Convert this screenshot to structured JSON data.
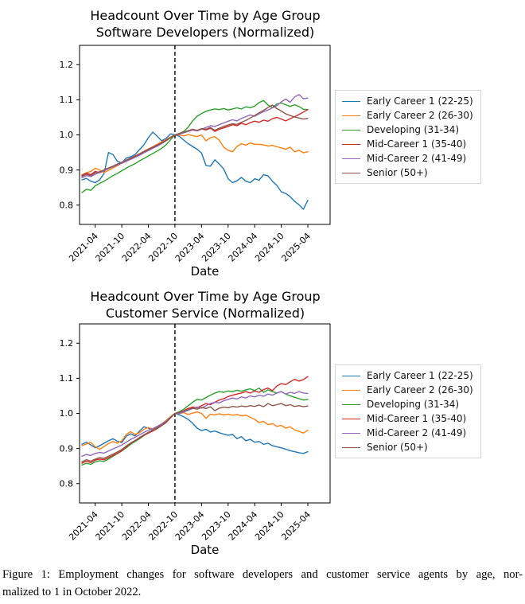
{
  "figure": {
    "caption_lines": [
      "Figure 1: Employment changes for software developers and customer service agents by age, nor-",
      "malized to 1 in October 2022."
    ]
  },
  "chart_data": [
    {
      "type": "line",
      "title_lines": [
        "Headcount Over Time by Age Group",
        "Software Developers (Normalized)"
      ],
      "xlabel": "Date",
      "ylabel": "",
      "grid": false,
      "legend_position": "right-outside",
      "y_ticks": [
        0.8,
        0.9,
        1.0,
        1.1,
        1.2
      ],
      "ylim": [
        0.745,
        1.255
      ],
      "vline": {
        "x": "2022-10",
        "style": "dashed",
        "color": "#000000"
      },
      "x_tick_labels": [
        "2021-04",
        "2021-10",
        "2022-04",
        "2022-10",
        "2023-04",
        "2023-10",
        "2024-04",
        "2024-10",
        "2025-04"
      ],
      "x": [
        "2021-01",
        "2021-02",
        "2021-03",
        "2021-04",
        "2021-05",
        "2021-06",
        "2021-07",
        "2021-08",
        "2021-09",
        "2021-10",
        "2021-11",
        "2021-12",
        "2022-01",
        "2022-02",
        "2022-03",
        "2022-04",
        "2022-05",
        "2022-06",
        "2022-07",
        "2022-08",
        "2022-09",
        "2022-10",
        "2022-11",
        "2022-12",
        "2023-01",
        "2023-02",
        "2023-03",
        "2023-04",
        "2023-05",
        "2023-06",
        "2023-07",
        "2023-08",
        "2023-09",
        "2023-10",
        "2023-11",
        "2023-12",
        "2024-01",
        "2024-02",
        "2024-03",
        "2024-04",
        "2024-05",
        "2024-06",
        "2024-07",
        "2024-08",
        "2024-09",
        "2024-10",
        "2024-11",
        "2024-12",
        "2025-01",
        "2025-02",
        "2025-03",
        "2025-04"
      ],
      "series": [
        {
          "name": "Early Career 1 (22-25)",
          "color": "#1f77b4",
          "values": [
            0.872,
            0.876,
            0.868,
            0.864,
            0.872,
            0.89,
            0.95,
            0.944,
            0.925,
            0.92,
            0.934,
            0.938,
            0.944,
            0.958,
            0.972,
            0.992,
            1.008,
            0.996,
            0.983,
            0.99,
            1.003,
            1.0,
            0.996,
            0.985,
            0.975,
            0.967,
            0.959,
            0.948,
            0.913,
            0.911,
            0.929,
            0.917,
            0.903,
            0.875,
            0.864,
            0.869,
            0.879,
            0.868,
            0.864,
            0.875,
            0.871,
            0.887,
            0.883,
            0.868,
            0.856,
            0.838,
            0.833,
            0.824,
            0.811,
            0.801,
            0.788,
            0.814
          ]
        },
        {
          "name": "Early Career 2 (26-30)",
          "color": "#ff7f0e",
          "values": [
            0.886,
            0.892,
            0.896,
            0.905,
            0.9,
            0.893,
            0.899,
            0.906,
            0.912,
            0.919,
            0.925,
            0.932,
            0.938,
            0.946,
            0.953,
            0.96,
            0.966,
            0.973,
            0.98,
            0.986,
            0.994,
            1.0,
            1.0,
            0.997,
            1.001,
            0.998,
            0.995,
            1.0,
            0.983,
            0.992,
            0.995,
            0.985,
            0.965,
            0.956,
            0.952,
            0.967,
            0.975,
            0.971,
            0.977,
            0.973,
            0.973,
            0.972,
            0.968,
            0.97,
            0.966,
            0.963,
            0.959,
            0.965,
            0.952,
            0.956,
            0.949,
            0.952
          ]
        },
        {
          "name": "Developing (31-34)",
          "color": "#2ca02c",
          "values": [
            0.836,
            0.845,
            0.842,
            0.855,
            0.862,
            0.868,
            0.876,
            0.884,
            0.89,
            0.898,
            0.905,
            0.912,
            0.918,
            0.926,
            0.933,
            0.94,
            0.947,
            0.954,
            0.962,
            0.972,
            0.986,
            1.0,
            1.004,
            1.01,
            1.022,
            1.04,
            1.053,
            1.061,
            1.067,
            1.071,
            1.074,
            1.072,
            1.075,
            1.071,
            1.074,
            1.077,
            1.074,
            1.08,
            1.077,
            1.082,
            1.092,
            1.098,
            1.085,
            1.078,
            1.088,
            1.091,
            1.086,
            1.081,
            1.086,
            1.081,
            1.073,
            1.072
          ]
        },
        {
          "name": "Mid-Career 1 (35-40)",
          "color": "#d62728",
          "values": [
            0.885,
            0.891,
            0.887,
            0.896,
            0.892,
            0.898,
            0.904,
            0.91,
            0.916,
            0.921,
            0.928,
            0.934,
            0.94,
            0.946,
            0.953,
            0.959,
            0.965,
            0.971,
            0.978,
            0.985,
            0.993,
            1.0,
            1.003,
            1.007,
            1.011,
            1.014,
            1.012,
            1.017,
            1.014,
            1.019,
            1.01,
            1.016,
            1.02,
            1.024,
            1.029,
            1.026,
            1.033,
            1.029,
            1.035,
            1.039,
            1.036,
            1.042,
            1.039,
            1.046,
            1.05,
            1.045,
            1.04,
            1.046,
            1.052,
            1.058,
            1.065,
            1.072
          ]
        },
        {
          "name": "Mid-Career 2 (41-49)",
          "color": "#9467bd",
          "values": [
            0.878,
            0.884,
            0.881,
            0.888,
            0.893,
            0.898,
            0.904,
            0.909,
            0.914,
            0.919,
            0.925,
            0.93,
            0.936,
            0.942,
            0.949,
            0.955,
            0.962,
            0.968,
            0.975,
            0.983,
            0.992,
            1.0,
            1.002,
            1.006,
            1.01,
            1.014,
            1.011,
            1.016,
            1.021,
            1.026,
            1.024,
            1.029,
            1.034,
            1.039,
            1.043,
            1.04,
            1.047,
            1.052,
            1.057,
            1.053,
            1.06,
            1.066,
            1.071,
            1.077,
            1.083,
            1.094,
            1.102,
            1.093,
            1.108,
            1.115,
            1.103,
            1.105
          ]
        },
        {
          "name": "Senior (50+)",
          "color": "#8c564b",
          "values": [
            0.882,
            0.888,
            0.884,
            0.892,
            0.895,
            0.9,
            0.906,
            0.911,
            0.917,
            0.922,
            0.928,
            0.933,
            0.939,
            0.945,
            0.952,
            0.958,
            0.964,
            0.97,
            0.977,
            0.984,
            0.992,
            1.0,
            1.004,
            1.008,
            1.012,
            1.016,
            1.013,
            1.018,
            1.016,
            1.021,
            1.013,
            1.019,
            1.024,
            1.028,
            1.032,
            1.03,
            1.036,
            1.041,
            1.048,
            1.055,
            1.063,
            1.07,
            1.078,
            1.085,
            1.075,
            1.068,
            1.06,
            1.055,
            1.051,
            1.048,
            1.045,
            1.047
          ]
        }
      ]
    },
    {
      "type": "line",
      "title_lines": [
        "Headcount Over Time by Age Group",
        "Customer Service (Normalized)"
      ],
      "xlabel": "Date",
      "ylabel": "",
      "grid": false,
      "legend_position": "right-outside",
      "y_ticks": [
        0.8,
        0.9,
        1.0,
        1.1,
        1.2
      ],
      "ylim": [
        0.745,
        1.255
      ],
      "vline": {
        "x": "2022-10",
        "style": "dashed",
        "color": "#000000"
      },
      "x_tick_labels": [
        "2021-04",
        "2021-10",
        "2022-04",
        "2022-10",
        "2023-04",
        "2023-10",
        "2024-04",
        "2024-10",
        "2025-04"
      ],
      "x": [
        "2021-01",
        "2021-02",
        "2021-03",
        "2021-04",
        "2021-05",
        "2021-06",
        "2021-07",
        "2021-08",
        "2021-09",
        "2021-10",
        "2021-11",
        "2021-12",
        "2022-01",
        "2022-02",
        "2022-03",
        "2022-04",
        "2022-05",
        "2022-06",
        "2022-07",
        "2022-08",
        "2022-09",
        "2022-10",
        "2022-11",
        "2022-12",
        "2023-01",
        "2023-02",
        "2023-03",
        "2023-04",
        "2023-05",
        "2023-06",
        "2023-07",
        "2023-08",
        "2023-09",
        "2023-10",
        "2023-11",
        "2023-12",
        "2024-01",
        "2024-02",
        "2024-03",
        "2024-04",
        "2024-05",
        "2024-06",
        "2024-07",
        "2024-08",
        "2024-09",
        "2024-10",
        "2024-11",
        "2024-12",
        "2025-01",
        "2025-02",
        "2025-03",
        "2025-04"
      ],
      "series": [
        {
          "name": "Early Career 1 (22-25)",
          "color": "#1f77b4",
          "values": [
            0.912,
            0.918,
            0.91,
            0.902,
            0.908,
            0.915,
            0.922,
            0.928,
            0.921,
            0.917,
            0.935,
            0.942,
            0.936,
            0.95,
            0.962,
            0.958,
            0.952,
            0.96,
            0.968,
            0.978,
            0.99,
            1.0,
            0.996,
            0.99,
            0.983,
            0.972,
            0.958,
            0.951,
            0.955,
            0.947,
            0.95,
            0.945,
            0.941,
            0.938,
            0.94,
            0.928,
            0.934,
            0.922,
            0.926,
            0.918,
            0.92,
            0.912,
            0.915,
            0.908,
            0.905,
            0.902,
            0.898,
            0.894,
            0.891,
            0.888,
            0.886,
            0.891
          ]
        },
        {
          "name": "Early Career 2 (26-30)",
          "color": "#ff7f0e",
          "values": [
            0.908,
            0.913,
            0.917,
            0.905,
            0.898,
            0.906,
            0.914,
            0.92,
            0.915,
            0.922,
            0.94,
            0.948,
            0.94,
            0.945,
            0.955,
            0.96,
            0.955,
            0.963,
            0.97,
            0.98,
            0.991,
            1.0,
            1.0,
            1.002,
            0.997,
            1.001,
            1.004,
            1.0,
            0.986,
            0.998,
            0.996,
            0.999,
            0.996,
            0.998,
            0.995,
            0.997,
            0.993,
            0.995,
            0.989,
            0.983,
            0.974,
            0.977,
            0.968,
            0.971,
            0.963,
            0.966,
            0.958,
            0.962,
            0.953,
            0.949,
            0.944,
            0.952
          ]
        },
        {
          "name": "Developing (31-34)",
          "color": "#2ca02c",
          "values": [
            0.853,
            0.858,
            0.855,
            0.862,
            0.865,
            0.863,
            0.87,
            0.878,
            0.885,
            0.893,
            0.902,
            0.912,
            0.92,
            0.928,
            0.937,
            0.945,
            0.952,
            0.958,
            0.966,
            0.976,
            0.988,
            1.0,
            1.005,
            1.012,
            1.022,
            1.032,
            1.04,
            1.038,
            1.045,
            1.052,
            1.058,
            1.062,
            1.06,
            1.064,
            1.062,
            1.066,
            1.063,
            1.067,
            1.07,
            1.065,
            1.072,
            1.06,
            1.067,
            1.062,
            1.058,
            1.062,
            1.055,
            1.05,
            1.046,
            1.042,
            1.038,
            1.04
          ]
        },
        {
          "name": "Mid-Career 1 (35-40)",
          "color": "#d62728",
          "values": [
            0.858,
            0.864,
            0.86,
            0.867,
            0.87,
            0.868,
            0.874,
            0.88,
            0.886,
            0.894,
            0.905,
            0.915,
            0.922,
            0.93,
            0.938,
            0.944,
            0.95,
            0.957,
            0.965,
            0.974,
            0.987,
            1.0,
            1.002,
            1.008,
            1.014,
            1.018,
            1.016,
            1.022,
            1.028,
            1.025,
            1.032,
            1.038,
            1.042,
            1.048,
            1.052,
            1.055,
            1.058,
            1.062,
            1.058,
            1.064,
            1.06,
            1.068,
            1.072,
            1.065,
            1.078,
            1.085,
            1.082,
            1.09,
            1.097,
            1.092,
            1.096,
            1.105
          ]
        },
        {
          "name": "Mid-Career 2 (41-49)",
          "color": "#9467bd",
          "values": [
            0.878,
            0.883,
            0.88,
            0.886,
            0.889,
            0.887,
            0.893,
            0.899,
            0.904,
            0.91,
            0.918,
            0.926,
            0.932,
            0.939,
            0.946,
            0.952,
            0.957,
            0.963,
            0.97,
            0.978,
            0.989,
            1.0,
            1.0,
            1.004,
            1.009,
            1.014,
            1.018,
            1.015,
            1.022,
            1.028,
            1.032,
            1.03,
            1.036,
            1.04,
            1.044,
            1.041,
            1.047,
            1.044,
            1.05,
            1.047,
            1.052,
            1.049,
            1.055,
            1.052,
            1.058,
            1.062,
            1.055,
            1.06,
            1.057,
            1.062,
            1.058,
            1.057
          ]
        },
        {
          "name": "Senior (50+)",
          "color": "#8c564b",
          "values": [
            0.862,
            0.868,
            0.864,
            0.87,
            0.874,
            0.872,
            0.878,
            0.884,
            0.89,
            0.897,
            0.907,
            0.916,
            0.923,
            0.931,
            0.939,
            0.946,
            0.952,
            0.958,
            0.966,
            0.975,
            0.988,
            1.0,
            1.003,
            1.007,
            1.011,
            1.015,
            1.012,
            1.017,
            1.014,
            1.019,
            1.008,
            1.015,
            1.018,
            1.016,
            1.02,
            1.018,
            1.021,
            1.019,
            1.022,
            1.02,
            1.024,
            1.019,
            1.028,
            1.022,
            1.025,
            1.028,
            1.022,
            1.025,
            1.02,
            1.022,
            1.019,
            1.021
          ]
        }
      ]
    }
  ]
}
